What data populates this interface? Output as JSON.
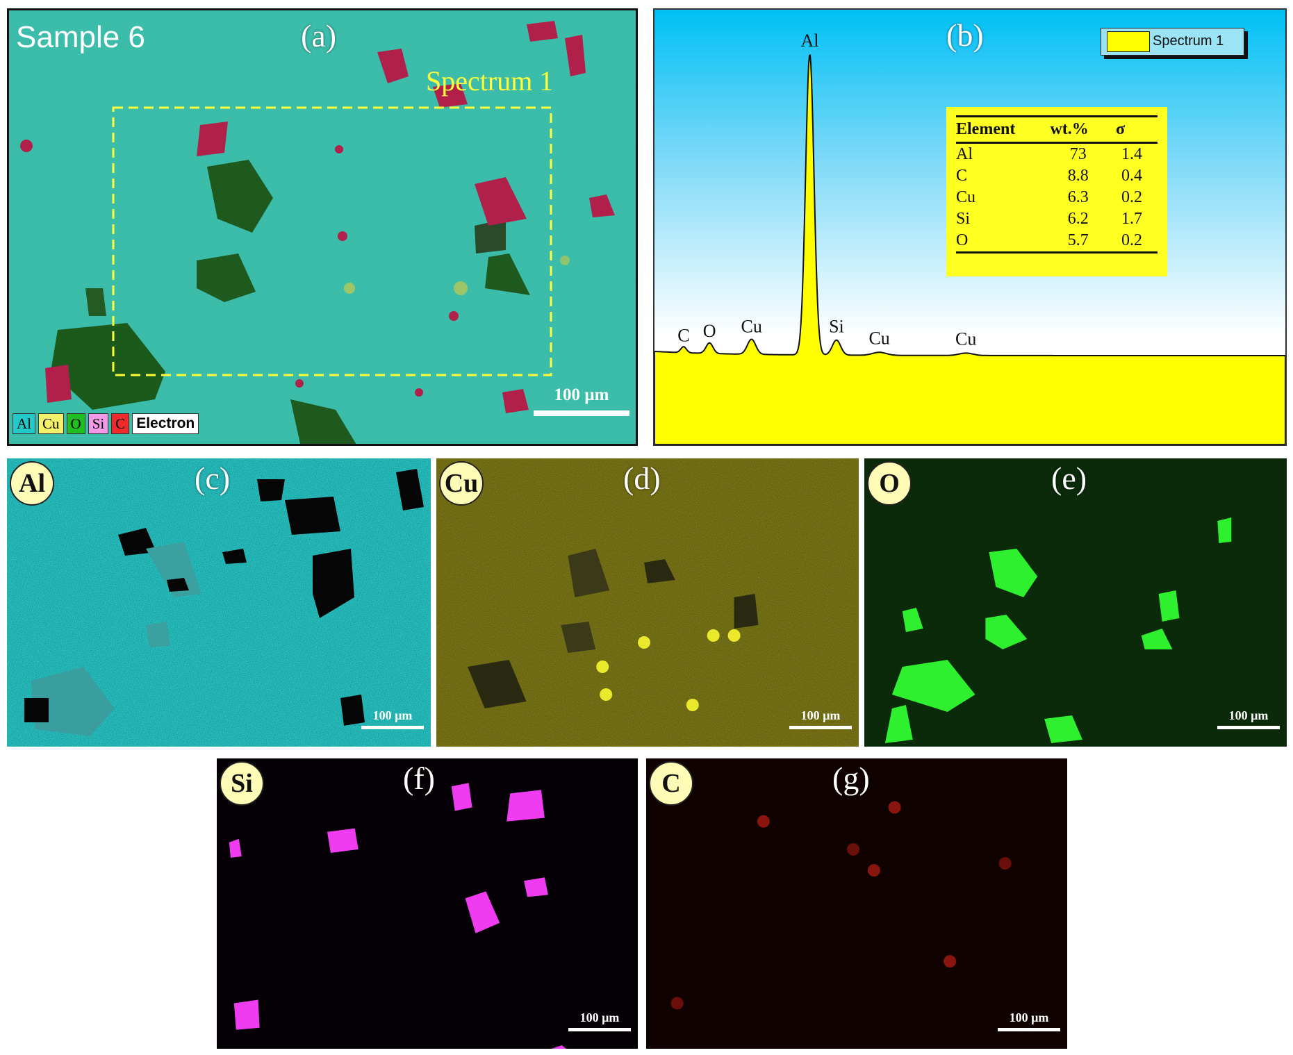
{
  "panel_a": {
    "sample_label": "Sample 6",
    "tag": "(a)",
    "spectrum_label": "Spectrum 1",
    "scale_bar": "100 µm",
    "legend": [
      {
        "label": "Al",
        "color": "#22c9c9"
      },
      {
        "label": "Cu",
        "color": "#f5f06a"
      },
      {
        "label": "O",
        "color": "#1fbf1f"
      },
      {
        "label": "Si",
        "color": "#f29ae8"
      },
      {
        "label": "C",
        "color": "#f02a2a"
      },
      {
        "label": "Electron",
        "color": "#ffffff"
      }
    ]
  },
  "panel_b": {
    "tag": "(b)",
    "legend_label": "Spectrum 1",
    "table": {
      "headers": [
        "Element",
        "wt.%",
        "σ"
      ],
      "rows": [
        [
          "Al",
          "73",
          "1.4"
        ],
        [
          "C",
          "8.8",
          "0.4"
        ],
        [
          "Cu",
          "6.3",
          "0.2"
        ],
        [
          "Si",
          "6.2",
          "1.7"
        ],
        [
          "O",
          "5.7",
          "0.2"
        ]
      ]
    }
  },
  "chart_data": {
    "type": "line",
    "series": [
      {
        "name": "Spectrum 1",
        "color": "#ffff00"
      }
    ],
    "peaks": [
      {
        "label": "C",
        "relative_height": 0.02
      },
      {
        "label": "O",
        "relative_height": 0.035
      },
      {
        "label": "Cu",
        "relative_height": 0.05
      },
      {
        "label": "Al",
        "relative_height": 1.0
      },
      {
        "label": "Si",
        "relative_height": 0.05
      },
      {
        "label": "Cu",
        "relative_height": 0.01
      },
      {
        "label": "Cu",
        "relative_height": 0.008
      }
    ],
    "grid": false,
    "legend_placement": "top-right"
  },
  "maps": [
    {
      "id": "c",
      "tag": "(c)",
      "element": "Al",
      "scale_bar": "100 µm",
      "color": "#2ee6e6"
    },
    {
      "id": "d",
      "tag": "(d)",
      "element": "Cu",
      "scale_bar": "100 µm",
      "color": "#d8cf14"
    },
    {
      "id": "e",
      "tag": "(e)",
      "element": "O",
      "scale_bar": "100 µm",
      "color": "#26ee26"
    },
    {
      "id": "f",
      "tag": "(f)",
      "element": "Si",
      "scale_bar": "100 µm",
      "color": "#f03cf0"
    },
    {
      "id": "g",
      "tag": "(g)",
      "element": "C",
      "scale_bar": "100 µm",
      "color": "#d21c10"
    }
  ]
}
